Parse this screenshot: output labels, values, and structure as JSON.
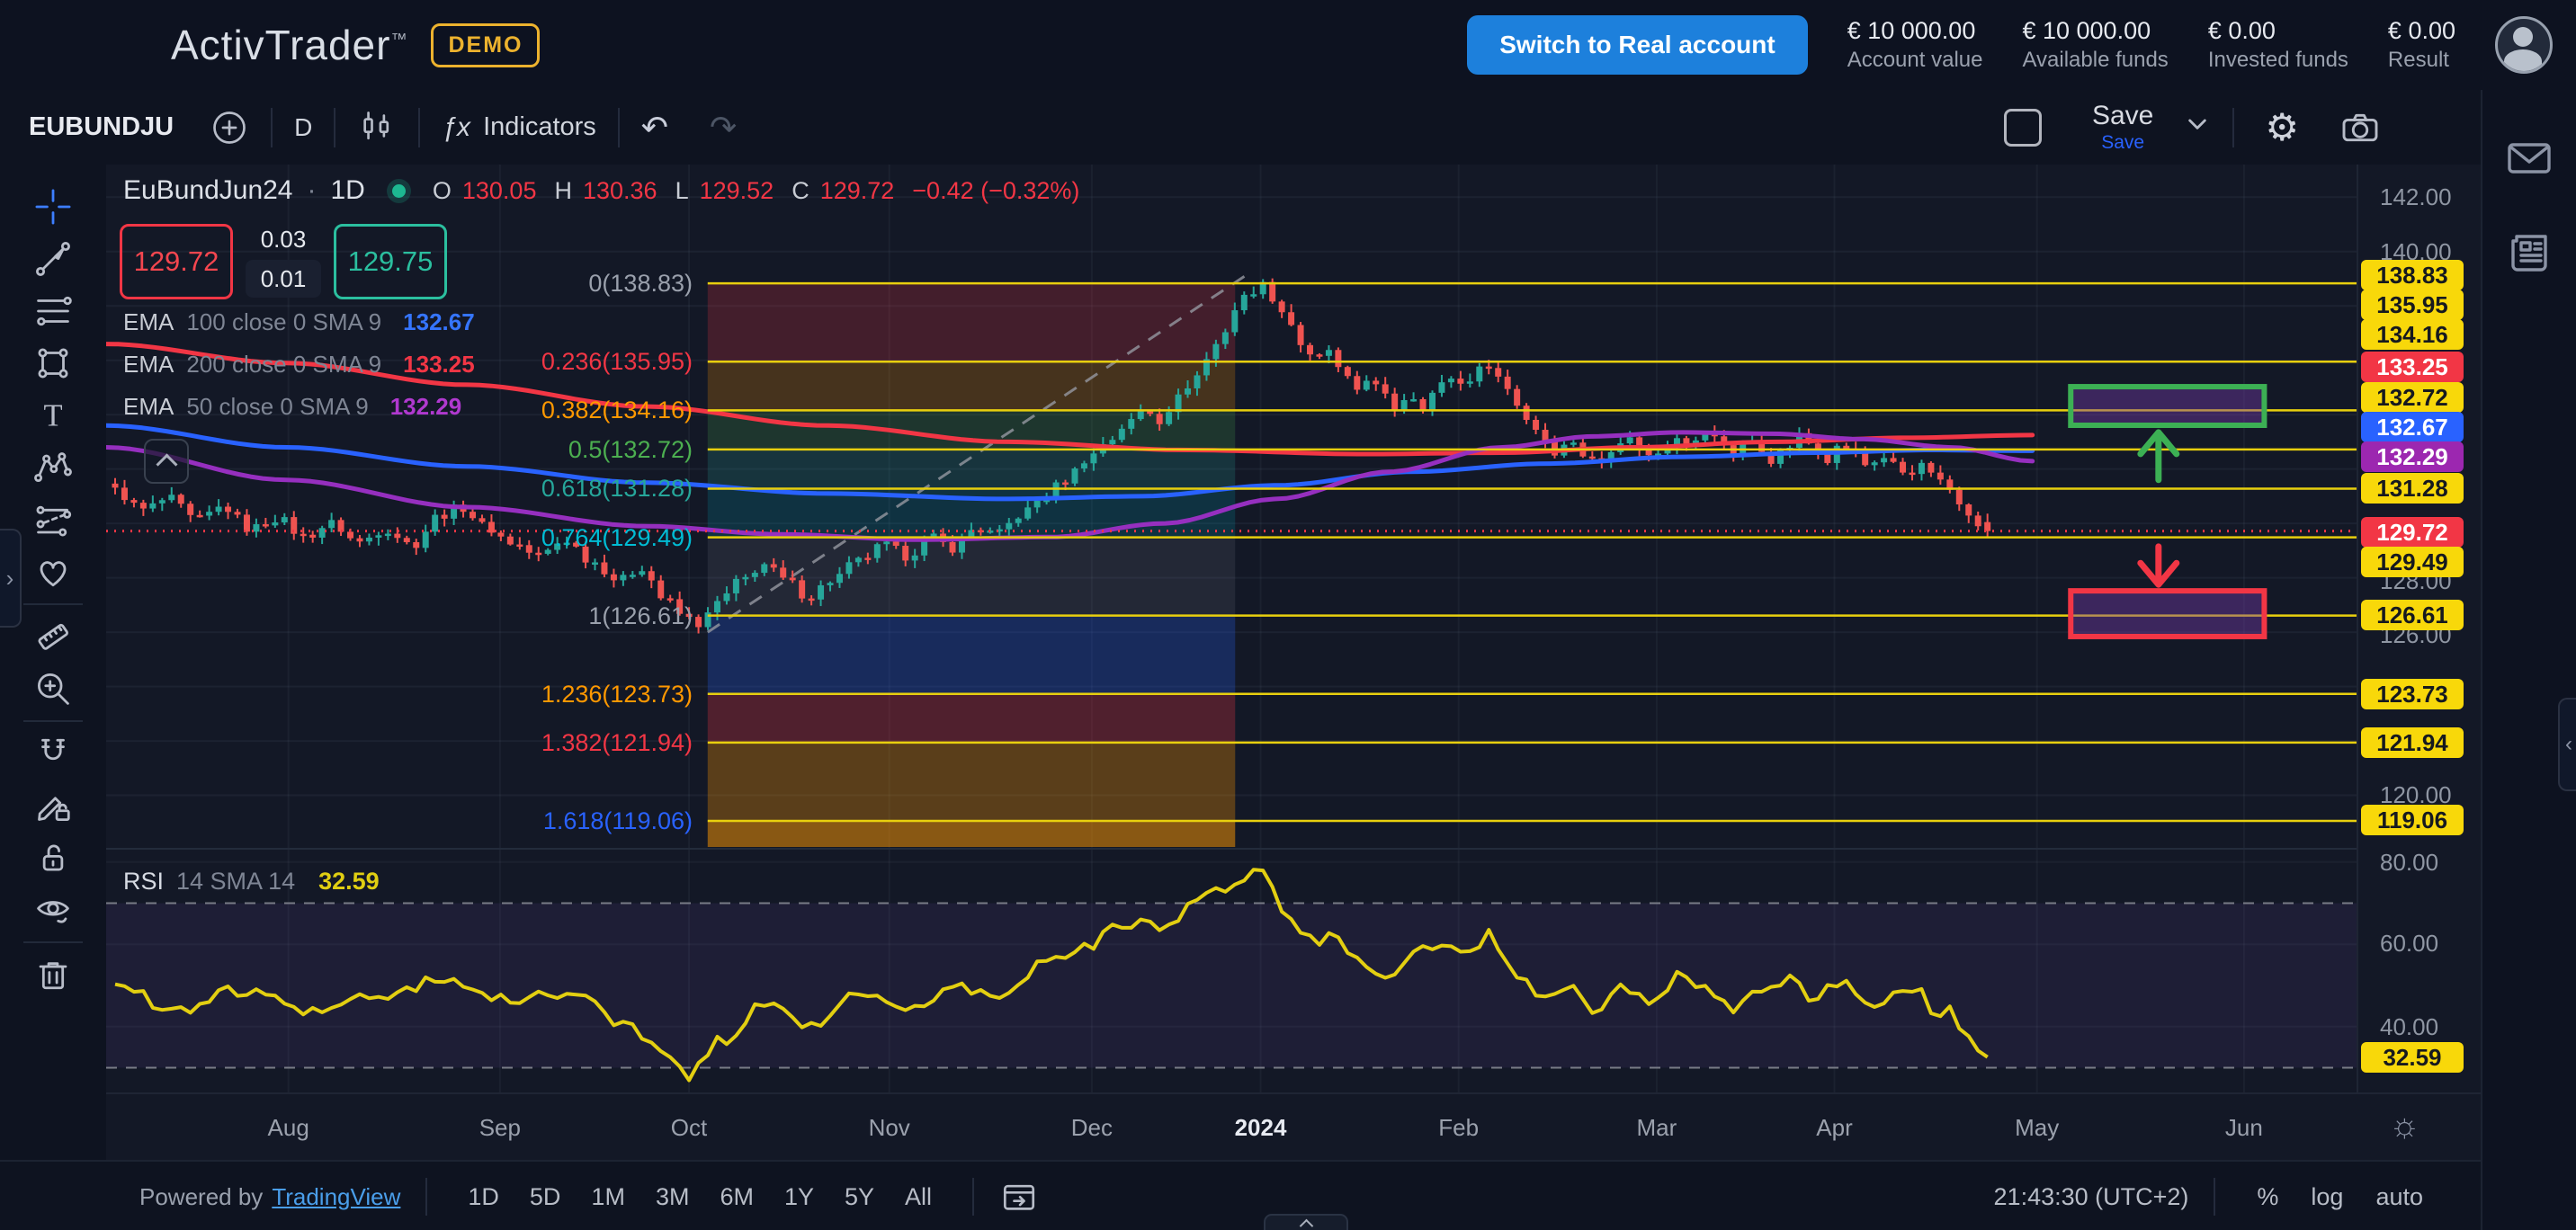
{
  "header": {
    "logo": "ActivTrader",
    "tm": "™",
    "demo": "DEMO",
    "switch_button": "Switch to Real account",
    "stats": [
      {
        "value": "€ 10 000.00",
        "label": "Account value"
      },
      {
        "value": "€ 10 000.00",
        "label": "Available funds"
      },
      {
        "value": "€ 0.00",
        "label": "Invested funds"
      },
      {
        "value": "€ 0.00",
        "label": "Result"
      }
    ]
  },
  "toolbar": {
    "symbol": "EUBUNDJU",
    "interval": "D",
    "fx": "ƒx",
    "indicators": "Indicators",
    "save": "Save",
    "save_sub": "Save"
  },
  "glyphs": {
    "undo": "↶",
    "redo": "↷",
    "gear": "⚙",
    "sun": "☼",
    "dot": "·",
    "left_handle": "›",
    "right_handle": "‹"
  },
  "chart": {
    "title": "EuBundJun24",
    "interval": "1D",
    "ohlc": {
      "ol": "O",
      "o": "130.05",
      "hl": "H",
      "h": "130.36",
      "ll": "L",
      "l": "129.52",
      "cl": "C",
      "c": "129.72",
      "change": "−0.42 (−0.32%)"
    },
    "bid": "129.72",
    "spread_high": "0.03",
    "spread_low": "0.01",
    "ask": "129.75",
    "emas": [
      {
        "name": "EMA",
        "params": "100 close 0 SMA 9",
        "value": "132.67",
        "color": "#3575ff"
      },
      {
        "name": "EMA",
        "params": "200 close 0 SMA 9",
        "value": "133.25",
        "color": "#f23645"
      },
      {
        "name": "EMA",
        "params": "50 close 0 SMA 9",
        "value": "132.29",
        "color": "#b039cf"
      }
    ],
    "rsi": {
      "name": "RSI",
      "params": "14 SMA 14",
      "value": "32.59"
    }
  },
  "price_axis": {
    "plain": [
      [
        "142.00",
        36
      ],
      [
        "140.00",
        97
      ],
      [
        "128.00",
        463
      ],
      [
        "126.00",
        523
      ],
      [
        "120.00",
        701
      ],
      [
        "80.00",
        776
      ],
      [
        "60.00",
        866
      ],
      [
        "40.00",
        959
      ]
    ],
    "badges": [
      [
        "138.83",
        "yellow",
        123
      ],
      [
        "135.95",
        "yellow",
        156
      ],
      [
        "134.16",
        "yellow",
        189
      ],
      [
        "133.25",
        "red",
        225
      ],
      [
        "132.72",
        "yellow",
        259
      ],
      [
        "132.67",
        "blue",
        292
      ],
      [
        "132.29",
        "purple",
        325
      ],
      [
        "131.28",
        "yellow",
        360
      ],
      [
        "129.72",
        "red",
        409
      ],
      [
        "129.49",
        "yellow",
        442
      ],
      [
        "126.61",
        "yellow",
        501
      ],
      [
        "123.73",
        "yellow",
        589
      ],
      [
        "121.94",
        "yellow",
        643
      ],
      [
        "119.06",
        "yellow",
        729
      ],
      [
        "32.59",
        "yellow",
        993
      ]
    ]
  },
  "bottom": {
    "powered": "Powered by",
    "tv": "TradingView",
    "ranges": [
      "1D",
      "5D",
      "1M",
      "3M",
      "6M",
      "1Y",
      "5Y",
      "All"
    ],
    "clock": "21:43:30 (UTC+2)",
    "percent": "%",
    "log": "log",
    "auto": "auto"
  },
  "chart_data": {
    "type": "candlestick",
    "symbol": "EuBundJun24",
    "interval": "1D",
    "title": "EuBundJun24 · 1D",
    "last": {
      "open": 130.05,
      "high": 130.36,
      "low": 129.52,
      "close": 129.72,
      "change": -0.42,
      "change_pct": -0.32
    },
    "price_pane": {
      "domain": [
        118.1,
        143.2
      ],
      "grid_step": 2
    },
    "x_months": [
      [
        "Aug",
        0.081
      ],
      [
        "Sep",
        0.175
      ],
      [
        "Oct",
        0.259
      ],
      [
        "Nov",
        0.348
      ],
      [
        "Dec",
        0.438
      ],
      [
        "2024",
        0.513,
        1
      ],
      [
        "Feb",
        0.601
      ],
      [
        "Mar",
        0.689
      ],
      [
        "Apr",
        0.768
      ],
      [
        "May",
        0.858
      ],
      [
        "Jun",
        0.95
      ]
    ],
    "candles": {
      "n": 200,
      "wiggle": 0.18,
      "up_color": "#26a69a",
      "down_color": "#ef5350",
      "anchors": [
        [
          0.004,
          131.2
        ],
        [
          0.016,
          130.5
        ],
        [
          0.028,
          130.9
        ],
        [
          0.04,
          130.1
        ],
        [
          0.052,
          130.6
        ],
        [
          0.064,
          129.8
        ],
        [
          0.076,
          130.2
        ],
        [
          0.088,
          129.5
        ],
        [
          0.1,
          130.0
        ],
        [
          0.112,
          129.3
        ],
        [
          0.124,
          129.8
        ],
        [
          0.136,
          129.2
        ],
        [
          0.148,
          130.3
        ],
        [
          0.158,
          130.6
        ],
        [
          0.168,
          129.9
        ],
        [
          0.18,
          129.3
        ],
        [
          0.192,
          128.8
        ],
        [
          0.204,
          129.4
        ],
        [
          0.216,
          128.6
        ],
        [
          0.228,
          127.9
        ],
        [
          0.238,
          128.4
        ],
        [
          0.248,
          127.2
        ],
        [
          0.258,
          126.5
        ],
        [
          0.264,
          126.3
        ],
        [
          0.272,
          127.1
        ],
        [
          0.282,
          127.9
        ],
        [
          0.292,
          128.5
        ],
        [
          0.302,
          127.9
        ],
        [
          0.312,
          127.3
        ],
        [
          0.322,
          127.9
        ],
        [
          0.334,
          128.6
        ],
        [
          0.346,
          129.2
        ],
        [
          0.356,
          128.8
        ],
        [
          0.366,
          129.5
        ],
        [
          0.376,
          129.1
        ],
        [
          0.386,
          129.8
        ],
        [
          0.396,
          129.6
        ],
        [
          0.406,
          130.3
        ],
        [
          0.416,
          130.9
        ],
        [
          0.426,
          131.6
        ],
        [
          0.436,
          132.4
        ],
        [
          0.446,
          133.1
        ],
        [
          0.454,
          133.7
        ],
        [
          0.462,
          134.2
        ],
        [
          0.468,
          133.8
        ],
        [
          0.476,
          134.6
        ],
        [
          0.484,
          135.4
        ],
        [
          0.49,
          136.1
        ],
        [
          0.496,
          137.0
        ],
        [
          0.502,
          137.9
        ],
        [
          0.508,
          138.5
        ],
        [
          0.513,
          138.8
        ],
        [
          0.519,
          138.3
        ],
        [
          0.525,
          137.5
        ],
        [
          0.531,
          136.6
        ],
        [
          0.537,
          135.9
        ],
        [
          0.543,
          136.4
        ],
        [
          0.549,
          135.5
        ],
        [
          0.555,
          134.9
        ],
        [
          0.561,
          135.4
        ],
        [
          0.567,
          134.7
        ],
        [
          0.573,
          134.2
        ],
        [
          0.579,
          134.8
        ],
        [
          0.585,
          134.3
        ],
        [
          0.591,
          134.9
        ],
        [
          0.597,
          135.4
        ],
        [
          0.603,
          135.1
        ],
        [
          0.609,
          135.6
        ],
        [
          0.615,
          135.9
        ],
        [
          0.621,
          135.1
        ],
        [
          0.627,
          134.4
        ],
        [
          0.633,
          133.7
        ],
        [
          0.639,
          133.1
        ],
        [
          0.645,
          132.6
        ],
        [
          0.651,
          133.1
        ],
        [
          0.657,
          132.5
        ],
        [
          0.663,
          132.2
        ],
        [
          0.669,
          132.8
        ],
        [
          0.675,
          133.2
        ],
        [
          0.681,
          132.8
        ],
        [
          0.687,
          132.4
        ],
        [
          0.693,
          132.9
        ],
        [
          0.699,
          133.3
        ],
        [
          0.705,
          132.9
        ],
        [
          0.711,
          133.4
        ],
        [
          0.717,
          133.0
        ],
        [
          0.723,
          132.6
        ],
        [
          0.729,
          133.1
        ],
        [
          0.735,
          132.7
        ],
        [
          0.741,
          132.3
        ],
        [
          0.747,
          132.8
        ],
        [
          0.753,
          133.2
        ],
        [
          0.759,
          132.8
        ],
        [
          0.765,
          132.4
        ],
        [
          0.771,
          132.9
        ],
        [
          0.777,
          132.5
        ],
        [
          0.783,
          132.1
        ],
        [
          0.789,
          132.5
        ],
        [
          0.795,
          132.1
        ],
        [
          0.801,
          131.7
        ],
        [
          0.807,
          132.2
        ],
        [
          0.813,
          131.6
        ],
        [
          0.819,
          131.1
        ],
        [
          0.825,
          130.6
        ],
        [
          0.83,
          130.1
        ],
        [
          0.836,
          129.7
        ]
      ]
    },
    "emas": [
      {
        "name": "EMA 200",
        "color": "#f23645",
        "anchors": [
          [
            0,
            136.6
          ],
          [
            0.08,
            135.9
          ],
          [
            0.16,
            135.1
          ],
          [
            0.24,
            134.3
          ],
          [
            0.32,
            133.6
          ],
          [
            0.4,
            133.0
          ],
          [
            0.48,
            132.7
          ],
          [
            0.56,
            132.55
          ],
          [
            0.62,
            132.6
          ],
          [
            0.68,
            132.8
          ],
          [
            0.74,
            133.0
          ],
          [
            0.8,
            133.15
          ],
          [
            0.856,
            133.25
          ]
        ]
      },
      {
        "name": "EMA 100",
        "color": "#2962ff",
        "anchors": [
          [
            0,
            133.6
          ],
          [
            0.08,
            132.8
          ],
          [
            0.16,
            132.1
          ],
          [
            0.24,
            131.5
          ],
          [
            0.32,
            131.1
          ],
          [
            0.4,
            130.9
          ],
          [
            0.46,
            131.0
          ],
          [
            0.52,
            131.4
          ],
          [
            0.58,
            131.9
          ],
          [
            0.64,
            132.2
          ],
          [
            0.7,
            132.45
          ],
          [
            0.76,
            132.6
          ],
          [
            0.81,
            132.7
          ],
          [
            0.856,
            132.67
          ]
        ]
      },
      {
        "name": "EMA 50",
        "color": "#962fbf",
        "anchors": [
          [
            0,
            132.8
          ],
          [
            0.08,
            131.6
          ],
          [
            0.16,
            130.6
          ],
          [
            0.24,
            129.9
          ],
          [
            0.3,
            129.6
          ],
          [
            0.36,
            129.4
          ],
          [
            0.42,
            129.5
          ],
          [
            0.47,
            130.0
          ],
          [
            0.52,
            130.9
          ],
          [
            0.57,
            131.9
          ],
          [
            0.62,
            132.8
          ],
          [
            0.66,
            133.2
          ],
          [
            0.7,
            133.35
          ],
          [
            0.74,
            133.3
          ],
          [
            0.78,
            133.1
          ],
          [
            0.82,
            132.8
          ],
          [
            0.856,
            132.29
          ]
        ]
      }
    ],
    "fib": {
      "x0": 0.2673,
      "x1": 0.5017,
      "line_color": "#e8cf0e",
      "levels": [
        {
          "label": "0(138.83)",
          "price": 138.83,
          "color": "#9aa0ac",
          "band": "rgba(242,54,69,0.22)"
        },
        {
          "label": "0.236(135.95)",
          "price": 135.95,
          "color": "#f23645",
          "band": "rgba(255,152,0,0.22)"
        },
        {
          "label": "0.382(134.16)",
          "price": 134.16,
          "color": "#ff9800",
          "band": "rgba(76,175,80,0.20)"
        },
        {
          "label": "0.5(132.72)",
          "price": 132.72,
          "color": "#4caf50",
          "band": "rgba(38,166,154,0.20)"
        },
        {
          "label": "0.618(131.28)",
          "price": 131.28,
          "color": "#26a69a",
          "band": "rgba(0,188,212,0.16)"
        },
        {
          "label": "0.764(129.49)",
          "price": 129.49,
          "color": "#00bcd4",
          "band": "rgba(155,160,170,0.12)"
        },
        {
          "label": "1(126.61)",
          "price": 126.61,
          "color": "#9aa0ac",
          "band": "rgba(41,98,255,0.25)"
        },
        {
          "label": "1.236(123.73)",
          "price": 123.73,
          "color": "#ff9800",
          "band": "rgba(242,54,69,0.28)"
        },
        {
          "label": "1.382(121.94)",
          "price": 121.94,
          "color": "#f23645",
          "band": "rgba(255,152,0,0.30)"
        },
        {
          "label": "1.618(119.06)",
          "price": 119.06,
          "color": "#2962ff",
          "band": "rgba(255,152,0,0.50)"
        }
      ]
    },
    "trendline": {
      "x0": 0.2673,
      "p0": 126.0,
      "x1": 0.506,
      "p1": 139.1,
      "color": "#9598a1"
    },
    "current_price": {
      "value": 129.72,
      "color": "#f23645"
    },
    "targets": [
      {
        "dir": "up",
        "x0": 0.873,
        "x1": 0.959,
        "p_top": 135.03,
        "p_bottom": 133.61,
        "border": "#3cb054",
        "fill": "rgba(116,60,170,0.42)"
      },
      {
        "dir": "down",
        "x0": 0.873,
        "x1": 0.959,
        "p_top": 127.52,
        "p_bottom": 125.84,
        "border": "#f23645",
        "fill": "rgba(116,60,170,0.42)"
      }
    ],
    "arrows": [
      {
        "dir": "up",
        "x": 0.912,
        "p_tip": 133.35,
        "p_tail": 131.6,
        "color": "#3cb054"
      },
      {
        "dir": "down",
        "x": 0.912,
        "p_tip": 127.75,
        "p_tail": 129.15,
        "color": "#f23645"
      }
    ],
    "rsi_pane": {
      "domain": [
        24,
        83
      ],
      "grid": [
        80,
        60,
        40
      ],
      "bands": [
        70,
        30
      ],
      "band_fill": "rgba(126,87,194,0.10)",
      "color": "#e3cf11",
      "value": 32.59,
      "anchors": [
        [
          0.004,
          50
        ],
        [
          0.03,
          44
        ],
        [
          0.06,
          49
        ],
        [
          0.09,
          43
        ],
        [
          0.12,
          47
        ],
        [
          0.15,
          52
        ],
        [
          0.18,
          46
        ],
        [
          0.21,
          49
        ],
        [
          0.228,
          41
        ],
        [
          0.248,
          33
        ],
        [
          0.258,
          28
        ],
        [
          0.272,
          36
        ],
        [
          0.292,
          45
        ],
        [
          0.312,
          40
        ],
        [
          0.334,
          48
        ],
        [
          0.356,
          44
        ],
        [
          0.376,
          50
        ],
        [
          0.396,
          47
        ],
        [
          0.416,
          55
        ],
        [
          0.436,
          60
        ],
        [
          0.454,
          65
        ],
        [
          0.462,
          68
        ],
        [
          0.468,
          63
        ],
        [
          0.484,
          70
        ],
        [
          0.496,
          74
        ],
        [
          0.508,
          77
        ],
        [
          0.513,
          78
        ],
        [
          0.525,
          68
        ],
        [
          0.537,
          60
        ],
        [
          0.543,
          64
        ],
        [
          0.555,
          56
        ],
        [
          0.567,
          52
        ],
        [
          0.579,
          57
        ],
        [
          0.591,
          60
        ],
        [
          0.603,
          58
        ],
        [
          0.615,
          62
        ],
        [
          0.627,
          52
        ],
        [
          0.639,
          46
        ],
        [
          0.651,
          50
        ],
        [
          0.663,
          44
        ],
        [
          0.675,
          50
        ],
        [
          0.687,
          46
        ],
        [
          0.699,
          52
        ],
        [
          0.711,
          50
        ],
        [
          0.723,
          45
        ],
        [
          0.735,
          48
        ],
        [
          0.747,
          52
        ],
        [
          0.759,
          47
        ],
        [
          0.771,
          51
        ],
        [
          0.783,
          44
        ],
        [
          0.795,
          47
        ],
        [
          0.807,
          49
        ],
        [
          0.813,
          42
        ],
        [
          0.819,
          44
        ],
        [
          0.825,
          40
        ],
        [
          0.83,
          36
        ],
        [
          0.836,
          32.59
        ]
      ]
    }
  }
}
